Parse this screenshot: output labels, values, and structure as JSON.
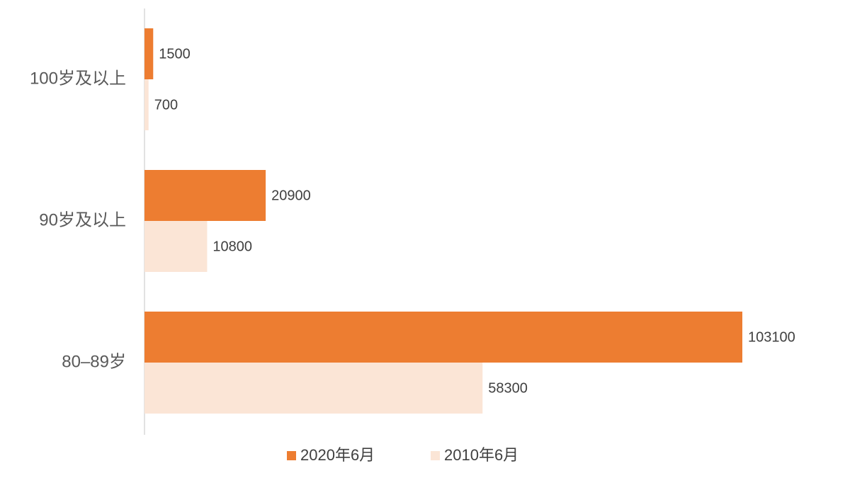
{
  "chart_data": {
    "type": "hbar",
    "categories": [
      "100岁及以上",
      "90岁及以上",
      "80–89岁"
    ],
    "series": [
      {
        "name": "2020年6月",
        "color": "#ed7d31",
        "values": [
          1500,
          20900,
          103100
        ]
      },
      {
        "name": "2010年6月",
        "color": "#fbe5d6",
        "values": [
          700,
          10800,
          58300
        ]
      }
    ],
    "legend": "bottom"
  }
}
